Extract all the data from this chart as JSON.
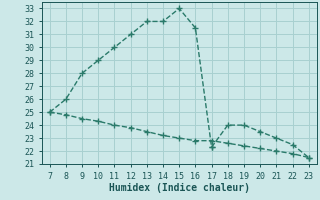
{
  "xlabel": "Humidex (Indice chaleur)",
  "xlim": [
    6.5,
    23.5
  ],
  "ylim": [
    21,
    33.5
  ],
  "xticks": [
    7,
    8,
    9,
    10,
    11,
    12,
    13,
    14,
    15,
    16,
    17,
    18,
    19,
    20,
    21,
    22,
    23
  ],
  "yticks": [
    21,
    22,
    23,
    24,
    25,
    26,
    27,
    28,
    29,
    30,
    31,
    32,
    33
  ],
  "curve1_x": [
    7,
    8,
    9,
    10,
    11,
    12,
    13,
    14,
    15,
    16,
    17
  ],
  "curve1_y": [
    25.0,
    26.0,
    28.0,
    29.0,
    30.0,
    31.0,
    32.0,
    32.0,
    33.0,
    31.5,
    22.3
  ],
  "curve2_x": [
    17,
    18,
    19,
    20,
    21,
    22,
    23
  ],
  "curve2_y": [
    22.3,
    24.0,
    24.0,
    23.5,
    23.0,
    22.5,
    21.5
  ],
  "curve3_x": [
    7,
    8,
    9,
    10,
    11,
    12,
    13,
    14,
    15,
    16,
    17,
    18,
    19,
    20,
    21,
    22,
    23
  ],
  "curve3_y": [
    25.0,
    24.8,
    24.5,
    24.3,
    24.0,
    23.8,
    23.5,
    23.2,
    23.0,
    22.8,
    22.8,
    22.6,
    22.4,
    22.2,
    22.0,
    21.8,
    21.5
  ],
  "line_color": "#2a7a6a",
  "bg_color": "#cce8e8",
  "grid_color": "#a8d0d0",
  "text_color": "#1a5555",
  "font_family": "monospace",
  "linewidth": 1.0,
  "markersize": 4
}
